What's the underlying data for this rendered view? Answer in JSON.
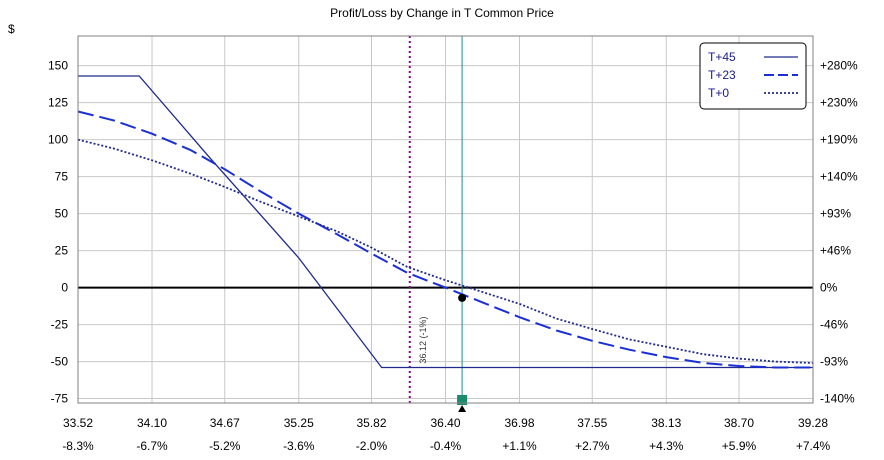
{
  "chart_data": {
    "type": "line",
    "title": "Profit/Loss by Change in T Common Price",
    "y_unit_label": "$",
    "x_ticks": [
      "33.52",
      "34.10",
      "34.67",
      "35.25",
      "35.82",
      "36.40",
      "36.98",
      "37.55",
      "38.13",
      "38.70",
      "39.28"
    ],
    "x_tick_values": [
      33.52,
      34.1,
      34.67,
      35.25,
      35.82,
      36.4,
      36.98,
      37.55,
      38.13,
      38.7,
      39.28
    ],
    "x_pct_ticks": [
      "-8.3%",
      "-6.7%",
      "-5.2%",
      "-3.6%",
      "-2.0%",
      "-0.4%",
      "+1.1%",
      "+2.7%",
      "+4.3%",
      "+5.9%",
      "+7.4%"
    ],
    "y_ticks": [
      "150",
      "125",
      "100",
      "75",
      "50",
      "25",
      "0",
      "-25",
      "-50",
      "-75"
    ],
    "y_tick_values": [
      150,
      125,
      100,
      75,
      50,
      25,
      0,
      -25,
      -50,
      -75
    ],
    "y_right_ticks": [
      "+280%",
      "+230%",
      "+190%",
      "+140%",
      "+93%",
      "+46%",
      "0%",
      "-46%",
      "-93%",
      "-140%"
    ],
    "xlim": [
      33.52,
      39.28
    ],
    "ylim": [
      -78,
      170
    ],
    "grid": true,
    "legend_position": "top-right",
    "series": [
      {
        "name": "T+45",
        "style": "solid",
        "color": "#1f2a8c",
        "x": [
          33.52,
          34.0,
          34.55,
          35.25,
          35.9,
          36.0,
          39.28
        ],
        "y": [
          143,
          143,
          88,
          20,
          -54,
          -54,
          -54
        ]
      },
      {
        "name": "T+23",
        "style": "dash",
        "color": "#1a2fd6",
        "x": [
          33.52,
          33.8,
          34.1,
          34.4,
          34.67,
          34.95,
          35.25,
          35.55,
          35.82,
          36.1,
          36.4,
          36.69,
          36.98,
          37.27,
          37.55,
          37.84,
          38.13,
          38.42,
          38.7,
          38.99,
          39.28
        ],
        "y": [
          119,
          113,
          104,
          93,
          80,
          65,
          50,
          36,
          23,
          10,
          0,
          -10,
          -20,
          -29,
          -36,
          -42,
          -47,
          -51,
          -53,
          -54,
          -54
        ]
      },
      {
        "name": "T+0",
        "style": "dot",
        "color": "#1f2a8c",
        "x": [
          33.52,
          33.8,
          34.1,
          34.4,
          34.67,
          34.95,
          35.25,
          35.55,
          35.82,
          36.1,
          36.4,
          36.69,
          36.98,
          37.27,
          37.55,
          37.84,
          38.13,
          38.42,
          38.7,
          38.99,
          39.28
        ],
        "y": [
          100,
          94,
          86,
          77,
          68,
          58,
          48,
          38,
          27,
          14,
          5,
          -3,
          -11,
          -21,
          -28,
          -35,
          -40,
          -45,
          -48,
          -50,
          -51
        ]
      }
    ],
    "breakeven_line": {
      "x": 36.12,
      "label": "36.12 (-1%)",
      "color": "#8b008b"
    },
    "current_price_line": {
      "x": 36.53,
      "color": "#1a8c8c"
    },
    "marker_point": {
      "x": 36.53,
      "y": -7
    },
    "colors": {
      "zero_line": "#000000",
      "grid": "#c8c8c8",
      "legend_border": "#000000"
    }
  }
}
